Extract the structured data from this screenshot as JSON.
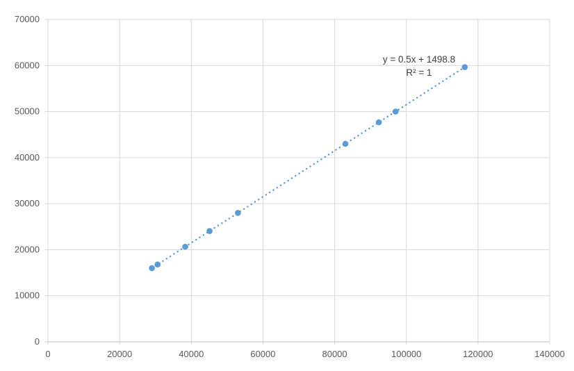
{
  "chart_data": {
    "type": "scatter",
    "title": "",
    "xlabel": "",
    "ylabel": "",
    "xlim": [
      0,
      140000
    ],
    "ylim": [
      0,
      70000
    ],
    "x_ticks": [
      0,
      20000,
      40000,
      60000,
      80000,
      100000,
      120000,
      140000
    ],
    "y_ticks": [
      0,
      10000,
      20000,
      30000,
      40000,
      50000,
      60000,
      70000
    ],
    "grid": true,
    "legend": "none",
    "points": [
      [
        29000,
        15998.8
      ],
      [
        30600,
        16798.8
      ],
      [
        38300,
        20648.8
      ],
      [
        45100,
        24048.8
      ],
      [
        53000,
        27998.8
      ],
      [
        83000,
        42998.8
      ],
      [
        92350,
        47673.8
      ],
      [
        97000,
        49998.8
      ],
      [
        116300,
        59648.8
      ]
    ],
    "trendline": {
      "slope": 0.5,
      "intercept": 1498.8,
      "equation": "y = 0.5x + 1498.8",
      "r_squared": "R² = 1",
      "style": "dotted"
    },
    "colors": {
      "marker": "#5B9BD5",
      "trendline": "#5B9BD5",
      "gridline": "#D9D9D9",
      "axis_line": "#BFBFBF",
      "tick_label": "#595959",
      "equation_text": "#404040"
    }
  }
}
